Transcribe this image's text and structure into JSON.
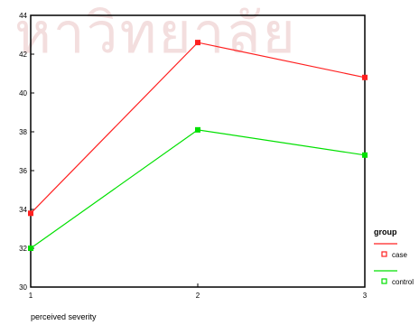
{
  "watermark": "หาวิทยาลัย",
  "chart_data": {
    "type": "line",
    "title": "",
    "xlabel": "perceived severity",
    "ylabel": "",
    "categories": [
      "1",
      "2",
      "3"
    ],
    "xlim": [
      1,
      3
    ],
    "ylim": [
      30,
      44
    ],
    "yticks": [
      "30",
      "32",
      "34",
      "36",
      "38",
      "40",
      "42",
      "44"
    ],
    "grid": false,
    "legend": {
      "title": "group",
      "placement": "right"
    },
    "series": [
      {
        "name": "case",
        "values": [
          33.8,
          42.6,
          40.8
        ],
        "color": "#ff2020"
      },
      {
        "name": "control",
        "values": [
          32.0,
          38.1,
          36.8
        ],
        "color": "#00e000"
      }
    ]
  }
}
